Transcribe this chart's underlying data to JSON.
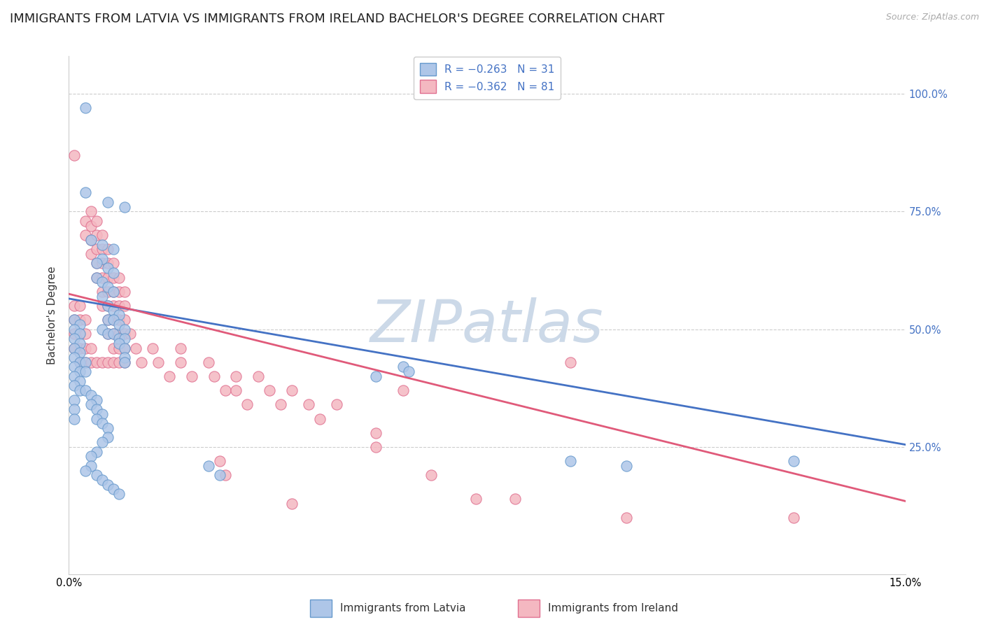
{
  "title": "IMMIGRANTS FROM LATVIA VS IMMIGRANTS FROM IRELAND BACHELOR'S DEGREE CORRELATION CHART",
  "source_text": "Source: ZipAtlas.com",
  "ylabel": "Bachelor's Degree",
  "y_tick_labels": [
    "100.0%",
    "75.0%",
    "50.0%",
    "25.0%"
  ],
  "y_tick_positions": [
    1.0,
    0.75,
    0.5,
    0.25
  ],
  "x_lim": [
    0.0,
    0.15
  ],
  "y_lim": [
    -0.02,
    1.08
  ],
  "watermark": "ZIPatlas",
  "blue_scatter": [
    [
      0.003,
      0.97
    ],
    [
      0.003,
      0.79
    ],
    [
      0.007,
      0.77
    ],
    [
      0.01,
      0.76
    ],
    [
      0.004,
      0.69
    ],
    [
      0.006,
      0.68
    ],
    [
      0.008,
      0.67
    ],
    [
      0.006,
      0.65
    ],
    [
      0.005,
      0.64
    ],
    [
      0.007,
      0.63
    ],
    [
      0.008,
      0.62
    ],
    [
      0.005,
      0.61
    ],
    [
      0.006,
      0.6
    ],
    [
      0.007,
      0.59
    ],
    [
      0.008,
      0.58
    ],
    [
      0.006,
      0.57
    ],
    [
      0.007,
      0.55
    ],
    [
      0.008,
      0.54
    ],
    [
      0.009,
      0.53
    ],
    [
      0.007,
      0.52
    ],
    [
      0.008,
      0.52
    ],
    [
      0.009,
      0.51
    ],
    [
      0.01,
      0.5
    ],
    [
      0.006,
      0.5
    ],
    [
      0.007,
      0.49
    ],
    [
      0.008,
      0.49
    ],
    [
      0.009,
      0.48
    ],
    [
      0.01,
      0.48
    ],
    [
      0.009,
      0.47
    ],
    [
      0.01,
      0.46
    ],
    [
      0.01,
      0.44
    ],
    [
      0.01,
      0.43
    ],
    [
      0.001,
      0.52
    ],
    [
      0.002,
      0.51
    ],
    [
      0.001,
      0.5
    ],
    [
      0.002,
      0.49
    ],
    [
      0.001,
      0.48
    ],
    [
      0.002,
      0.47
    ],
    [
      0.001,
      0.46
    ],
    [
      0.002,
      0.45
    ],
    [
      0.001,
      0.44
    ],
    [
      0.002,
      0.43
    ],
    [
      0.003,
      0.43
    ],
    [
      0.001,
      0.42
    ],
    [
      0.002,
      0.41
    ],
    [
      0.003,
      0.41
    ],
    [
      0.001,
      0.4
    ],
    [
      0.002,
      0.39
    ],
    [
      0.001,
      0.38
    ],
    [
      0.002,
      0.37
    ],
    [
      0.001,
      0.35
    ],
    [
      0.001,
      0.33
    ],
    [
      0.001,
      0.31
    ],
    [
      0.003,
      0.37
    ],
    [
      0.004,
      0.36
    ],
    [
      0.005,
      0.35
    ],
    [
      0.004,
      0.34
    ],
    [
      0.005,
      0.33
    ],
    [
      0.006,
      0.32
    ],
    [
      0.005,
      0.31
    ],
    [
      0.006,
      0.3
    ],
    [
      0.007,
      0.29
    ],
    [
      0.007,
      0.27
    ],
    [
      0.006,
      0.26
    ],
    [
      0.005,
      0.24
    ],
    [
      0.004,
      0.23
    ],
    [
      0.004,
      0.21
    ],
    [
      0.003,
      0.2
    ],
    [
      0.005,
      0.19
    ],
    [
      0.006,
      0.18
    ],
    [
      0.007,
      0.17
    ],
    [
      0.008,
      0.16
    ],
    [
      0.009,
      0.15
    ],
    [
      0.025,
      0.21
    ],
    [
      0.027,
      0.19
    ],
    [
      0.06,
      0.42
    ],
    [
      0.061,
      0.41
    ],
    [
      0.055,
      0.4
    ],
    [
      0.09,
      0.22
    ],
    [
      0.1,
      0.21
    ],
    [
      0.13,
      0.22
    ]
  ],
  "pink_scatter": [
    [
      0.001,
      0.87
    ],
    [
      0.003,
      0.73
    ],
    [
      0.003,
      0.7
    ],
    [
      0.004,
      0.75
    ],
    [
      0.004,
      0.72
    ],
    [
      0.004,
      0.69
    ],
    [
      0.004,
      0.66
    ],
    [
      0.005,
      0.73
    ],
    [
      0.005,
      0.7
    ],
    [
      0.005,
      0.67
    ],
    [
      0.005,
      0.64
    ],
    [
      0.005,
      0.61
    ],
    [
      0.006,
      0.7
    ],
    [
      0.006,
      0.67
    ],
    [
      0.006,
      0.64
    ],
    [
      0.006,
      0.61
    ],
    [
      0.006,
      0.58
    ],
    [
      0.006,
      0.55
    ],
    [
      0.007,
      0.67
    ],
    [
      0.007,
      0.64
    ],
    [
      0.007,
      0.61
    ],
    [
      0.007,
      0.58
    ],
    [
      0.007,
      0.55
    ],
    [
      0.007,
      0.52
    ],
    [
      0.007,
      0.49
    ],
    [
      0.008,
      0.64
    ],
    [
      0.008,
      0.61
    ],
    [
      0.008,
      0.58
    ],
    [
      0.008,
      0.55
    ],
    [
      0.008,
      0.52
    ],
    [
      0.008,
      0.49
    ],
    [
      0.008,
      0.46
    ],
    [
      0.009,
      0.61
    ],
    [
      0.009,
      0.58
    ],
    [
      0.009,
      0.55
    ],
    [
      0.009,
      0.52
    ],
    [
      0.009,
      0.49
    ],
    [
      0.009,
      0.46
    ],
    [
      0.01,
      0.58
    ],
    [
      0.01,
      0.55
    ],
    [
      0.01,
      0.52
    ],
    [
      0.01,
      0.49
    ],
    [
      0.01,
      0.46
    ],
    [
      0.001,
      0.55
    ],
    [
      0.001,
      0.52
    ],
    [
      0.001,
      0.49
    ],
    [
      0.002,
      0.55
    ],
    [
      0.002,
      0.52
    ],
    [
      0.002,
      0.49
    ],
    [
      0.002,
      0.46
    ],
    [
      0.003,
      0.52
    ],
    [
      0.003,
      0.49
    ],
    [
      0.003,
      0.46
    ],
    [
      0.001,
      0.46
    ],
    [
      0.002,
      0.43
    ],
    [
      0.003,
      0.43
    ],
    [
      0.004,
      0.46
    ],
    [
      0.004,
      0.43
    ],
    [
      0.005,
      0.43
    ],
    [
      0.006,
      0.43
    ],
    [
      0.007,
      0.43
    ],
    [
      0.008,
      0.43
    ],
    [
      0.009,
      0.43
    ],
    [
      0.01,
      0.43
    ],
    [
      0.011,
      0.49
    ],
    [
      0.012,
      0.46
    ],
    [
      0.013,
      0.43
    ],
    [
      0.015,
      0.46
    ],
    [
      0.016,
      0.43
    ],
    [
      0.018,
      0.4
    ],
    [
      0.02,
      0.46
    ],
    [
      0.02,
      0.43
    ],
    [
      0.022,
      0.4
    ],
    [
      0.025,
      0.43
    ],
    [
      0.026,
      0.4
    ],
    [
      0.028,
      0.37
    ],
    [
      0.03,
      0.4
    ],
    [
      0.03,
      0.37
    ],
    [
      0.032,
      0.34
    ],
    [
      0.034,
      0.4
    ],
    [
      0.036,
      0.37
    ],
    [
      0.038,
      0.34
    ],
    [
      0.04,
      0.37
    ],
    [
      0.043,
      0.34
    ],
    [
      0.045,
      0.31
    ],
    [
      0.048,
      0.34
    ],
    [
      0.055,
      0.28
    ],
    [
      0.055,
      0.25
    ],
    [
      0.06,
      0.37
    ],
    [
      0.065,
      0.19
    ],
    [
      0.073,
      0.14
    ],
    [
      0.08,
      0.14
    ],
    [
      0.09,
      0.43
    ],
    [
      0.1,
      0.1
    ],
    [
      0.13,
      0.1
    ],
    [
      0.027,
      0.22
    ],
    [
      0.028,
      0.19
    ],
    [
      0.04,
      0.13
    ]
  ],
  "blue_line_x": [
    0.0,
    0.15
  ],
  "blue_line_y": [
    0.565,
    0.255
  ],
  "pink_line_x": [
    0.0,
    0.15
  ],
  "pink_line_y": [
    0.575,
    0.135
  ],
  "blue_line_color": "#4472c4",
  "pink_line_color": "#e05a7a",
  "blue_scatter_color": "#aec6e8",
  "pink_scatter_color": "#f4b8c1",
  "blue_scatter_edge": "#6699cc",
  "pink_scatter_edge": "#e07090",
  "scatter_size": 120,
  "grid_color": "#cccccc",
  "grid_style": "--",
  "bg_color": "#ffffff",
  "title_fontsize": 13,
  "axis_label_fontsize": 11,
  "tick_fontsize": 10.5,
  "watermark_color": "#ccd9e8",
  "watermark_fontsize": 60
}
